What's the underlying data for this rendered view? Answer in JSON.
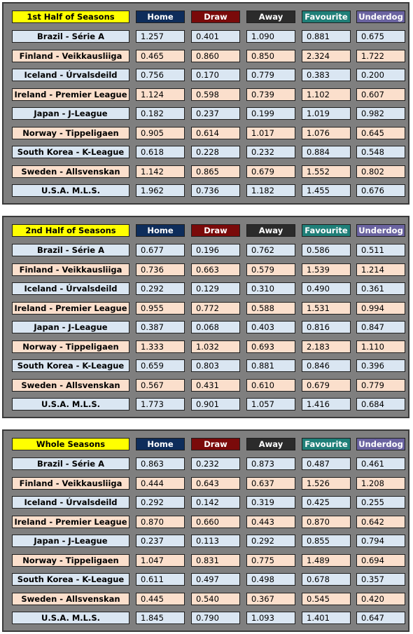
{
  "headers": {
    "home": "Home",
    "draw": "Draw",
    "away": "Away",
    "favourite": "Favourite",
    "underdog": "Underdog"
  },
  "sections": [
    {
      "title": "1st Half of Seasons",
      "rows": [
        {
          "league": "Brazil - Série A",
          "home": "1.257",
          "draw": "0.401",
          "away": "1.090",
          "favourite": "0.881",
          "underdog": "0.675"
        },
        {
          "league": "Finland - Veikkausliiga",
          "home": "0.465",
          "draw": "0.860",
          "away": "0.850",
          "favourite": "2.324",
          "underdog": "1.722"
        },
        {
          "league": "Iceland - Úrvalsdeild",
          "home": "0.756",
          "draw": "0.170",
          "away": "0.779",
          "favourite": "0.383",
          "underdog": "0.200"
        },
        {
          "league": "Ireland - Premier League",
          "home": "1.124",
          "draw": "0.598",
          "away": "0.739",
          "favourite": "1.102",
          "underdog": "0.607"
        },
        {
          "league": "Japan - J-League",
          "home": "0.182",
          "draw": "0.237",
          "away": "0.199",
          "favourite": "1.019",
          "underdog": "0.982"
        },
        {
          "league": "Norway - Tippeligaen",
          "home": "0.905",
          "draw": "0.614",
          "away": "1.017",
          "favourite": "1.076",
          "underdog": "0.645"
        },
        {
          "league": "South Korea - K-League",
          "home": "0.618",
          "draw": "0.228",
          "away": "0.232",
          "favourite": "0.884",
          "underdog": "0.548"
        },
        {
          "league": "Sweden - Allsvenskan",
          "home": "1.142",
          "draw": "0.865",
          "away": "0.679",
          "favourite": "1.552",
          "underdog": "0.802"
        },
        {
          "league": "U.S.A. M.L.S.",
          "home": "1.962",
          "draw": "0.736",
          "away": "1.182",
          "favourite": "1.455",
          "underdog": "0.676"
        }
      ]
    },
    {
      "title": "2nd Half of Seasons",
      "rows": [
        {
          "league": "Brazil - Série A",
          "home": "0.677",
          "draw": "0.196",
          "away": "0.762",
          "favourite": "0.586",
          "underdog": "0.511"
        },
        {
          "league": "Finland - Veikkausliiga",
          "home": "0.736",
          "draw": "0.663",
          "away": "0.579",
          "favourite": "1.539",
          "underdog": "1.214"
        },
        {
          "league": "Iceland - Úrvalsdeild",
          "home": "0.292",
          "draw": "0.129",
          "away": "0.310",
          "favourite": "0.490",
          "underdog": "0.361"
        },
        {
          "league": "Ireland - Premier League",
          "home": "0.955",
          "draw": "0.772",
          "away": "0.588",
          "favourite": "1.531",
          "underdog": "0.994"
        },
        {
          "league": "Japan - J-League",
          "home": "0.387",
          "draw": "0.068",
          "away": "0.403",
          "favourite": "0.816",
          "underdog": "0.847"
        },
        {
          "league": "Norway - Tippeligaen",
          "home": "1.333",
          "draw": "1.032",
          "away": "0.693",
          "favourite": "2.183",
          "underdog": "1.110"
        },
        {
          "league": "South Korea - K-League",
          "home": "0.659",
          "draw": "0.803",
          "away": "0.881",
          "favourite": "0.846",
          "underdog": "0.396"
        },
        {
          "league": "Sweden - Allsvenskan",
          "home": "0.567",
          "draw": "0.431",
          "away": "0.610",
          "favourite": "0.679",
          "underdog": "0.779"
        },
        {
          "league": "U.S.A. M.L.S.",
          "home": "1.773",
          "draw": "0.901",
          "away": "1.057",
          "favourite": "1.416",
          "underdog": "0.684"
        }
      ]
    },
    {
      "title": "Whole Seasons",
      "rows": [
        {
          "league": "Brazil - Série A",
          "home": "0.863",
          "draw": "0.232",
          "away": "0.873",
          "favourite": "0.487",
          "underdog": "0.461"
        },
        {
          "league": "Finland - Veikkausliiga",
          "home": "0.444",
          "draw": "0.643",
          "away": "0.637",
          "favourite": "1.526",
          "underdog": "1.208"
        },
        {
          "league": "Iceland - Úrvalsdeild",
          "home": "0.292",
          "draw": "0.142",
          "away": "0.319",
          "favourite": "0.425",
          "underdog": "0.255"
        },
        {
          "league": "Ireland - Premier League",
          "home": "0.870",
          "draw": "0.660",
          "away": "0.443",
          "favourite": "0.870",
          "underdog": "0.642"
        },
        {
          "league": "Japan - J-League",
          "home": "0.237",
          "draw": "0.113",
          "away": "0.292",
          "favourite": "0.855",
          "underdog": "0.794"
        },
        {
          "league": "Norway - Tippeligaen",
          "home": "1.047",
          "draw": "0.831",
          "away": "0.775",
          "favourite": "1.489",
          "underdog": "0.694"
        },
        {
          "league": "South Korea - K-League",
          "home": "0.611",
          "draw": "0.497",
          "away": "0.498",
          "favourite": "0.678",
          "underdog": "0.357"
        },
        {
          "league": "Sweden - Allsvenskan",
          "home": "0.445",
          "draw": "0.540",
          "away": "0.367",
          "favourite": "0.545",
          "underdog": "0.420"
        },
        {
          "league": "U.S.A. M.L.S.",
          "home": "1.845",
          "draw": "0.790",
          "away": "1.093",
          "favourite": "1.401",
          "underdog": "0.647"
        }
      ]
    }
  ]
}
